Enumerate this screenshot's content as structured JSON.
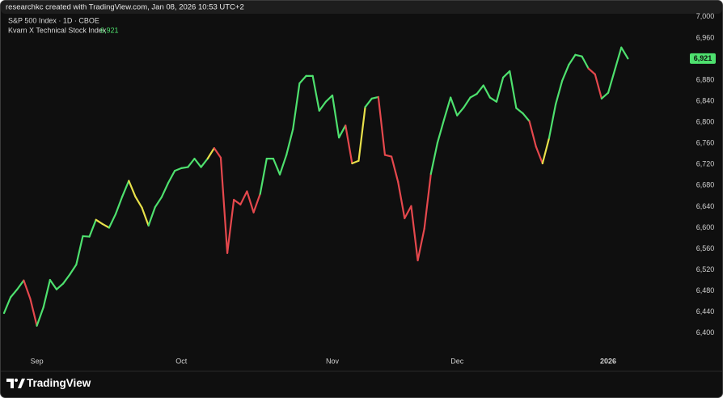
{
  "header": "researchkc created with TradingView.com, Jan 08, 2026 10:53 UTC+2",
  "brand": "TradingView",
  "chart_data": {
    "type": "line",
    "subtitle": "S&P 500 Index · 1D · CBOE",
    "categories": [
      null,
      null,
      null,
      null,
      null,
      "Sep",
      null,
      null,
      null,
      null,
      null,
      null,
      null,
      null,
      null,
      null,
      null,
      null,
      null,
      null,
      null,
      null,
      null,
      null,
      null,
      null,
      null,
      "Oct",
      null,
      null,
      null,
      null,
      null,
      null,
      null,
      null,
      null,
      null,
      null,
      null,
      null,
      null,
      null,
      null,
      null,
      null,
      null,
      null,
      null,
      null,
      "Nov",
      null,
      null,
      null,
      null,
      null,
      null,
      null,
      null,
      null,
      null,
      null,
      null,
      null,
      null,
      null,
      null,
      null,
      null,
      "Dec",
      null,
      null,
      null,
      null,
      null,
      null,
      null,
      null,
      null,
      null,
      null,
      null,
      null,
      null,
      null,
      null,
      null,
      null,
      null,
      null,
      null,
      null,
      "2026",
      null,
      null,
      null
    ],
    "series": [
      {
        "name": "Kvarn X Technical Stock Index",
        "values": [
          6438,
          6468,
          6483,
          6500,
          6465,
          6414,
          6449,
          6501,
          6483,
          6494,
          6511,
          6530,
          6584,
          6583,
          6615,
          6607,
          6600,
          6626,
          6659,
          6689,
          6659,
          6638,
          6604,
          6639,
          6658,
          6685,
          6708,
          6713,
          6715,
          6731,
          6715,
          6731,
          6751,
          6733,
          6552,
          6653,
          6644,
          6669,
          6629,
          6664,
          6731,
          6731,
          6701,
          6738,
          6787,
          6874,
          6888,
          6888,
          6822,
          6839,
          6851,
          6771,
          6794,
          6722,
          6727,
          6829,
          6845,
          6848,
          6738,
          6735,
          6687,
          6618,
          6641,
          6538,
          6598,
          6702,
          6761,
          6805,
          6847,
          6813,
          6828,
          6847,
          6854,
          6870,
          6847,
          6839,
          6885,
          6897,
          6827,
          6817,
          6802,
          6754,
          6722,
          6770,
          6834,
          6879,
          6909,
          6928,
          6925,
          6902,
          6891,
          6845,
          6856,
          6899,
          6942,
          6921
        ],
        "value_labels": [
          null,
          null,
          null,
          null,
          null,
          null,
          null,
          null,
          null,
          null,
          null,
          null,
          null,
          null,
          null,
          null,
          null,
          null,
          null,
          null,
          null,
          null,
          null,
          null,
          null,
          null,
          null,
          null,
          null,
          null,
          null,
          null,
          null,
          null,
          null,
          null,
          null,
          null,
          null,
          null,
          null,
          null,
          null,
          null,
          null,
          null,
          null,
          null,
          null,
          null,
          null,
          null,
          null,
          null,
          null,
          null,
          null,
          null,
          null,
          null,
          null,
          null,
          null,
          null,
          null,
          null,
          null,
          null,
          null,
          null,
          null,
          null,
          null,
          null,
          null,
          null,
          null,
          null,
          null,
          null,
          null,
          null,
          null,
          null,
          null,
          null,
          null,
          null,
          null,
          null,
          null,
          null,
          null,
          null,
          null,
          "6,921"
        ],
        "colors": [
          "#4ee06e",
          "#4ee06e",
          "#4ee06e",
          "#e5484d",
          "#e5484d",
          "#4ee06e",
          "#4ee06e",
          "#4ee06e",
          "#4ee06e",
          "#4ee06e",
          "#4ee06e",
          "#4ee06e",
          "#4ee06e",
          "#4ee06e",
          "#e8e04a",
          "#e8e04a",
          "#4ee06e",
          "#4ee06e",
          "#4ee06e",
          "#e8e04a",
          "#e8e04a",
          "#e8e04a",
          "#4ee06e",
          "#4ee06e",
          "#4ee06e",
          "#4ee06e",
          "#4ee06e",
          "#4ee06e",
          "#4ee06e",
          "#4ee06e",
          "#4ee06e",
          "#e8e04a",
          "#e5484d",
          "#e5484d",
          "#e5484d",
          "#e5484d",
          "#e5484d",
          "#e5484d",
          "#e5484d",
          "#4ee06e",
          "#4ee06e",
          "#4ee06e",
          "#4ee06e",
          "#4ee06e",
          "#4ee06e",
          "#4ee06e",
          "#4ee06e",
          "#4ee06e",
          "#4ee06e",
          "#4ee06e",
          "#4ee06e",
          "#4ee06e",
          "#e5484d",
          "#e8e04a",
          "#e8e04a",
          "#4ee06e",
          "#4ee06e",
          "#e5484d",
          "#e5484d",
          "#e5484d",
          "#e5484d",
          "#e5484d",
          "#e5484d",
          "#e5484d",
          "#e5484d",
          "#4ee06e",
          "#4ee06e",
          "#4ee06e",
          "#4ee06e",
          "#4ee06e",
          "#4ee06e",
          "#4ee06e",
          "#4ee06e",
          "#4ee06e",
          "#4ee06e",
          "#4ee06e",
          "#4ee06e",
          "#4ee06e",
          "#4ee06e",
          "#4ee06e",
          "#e5484d",
          "#e5484d",
          "#e8e04a",
          "#4ee06e",
          "#4ee06e",
          "#4ee06e",
          "#4ee06e",
          "#4ee06e",
          "#4ee06e",
          "#e5484d",
          "#e5484d",
          "#4ee06e",
          "#4ee06e",
          "#4ee06e",
          "#4ee06e",
          "#4ee06e"
        ]
      }
    ],
    "ylim": [
      6369,
      7009
    ],
    "yticks": [
      {
        "value": 6400,
        "label": "6,400"
      },
      {
        "value": 6440,
        "label": "6,440"
      },
      {
        "value": 6480,
        "label": "6,480"
      },
      {
        "value": 6520,
        "label": "6,520"
      },
      {
        "value": 6560,
        "label": "6,560"
      },
      {
        "value": 6600,
        "label": "6,600"
      },
      {
        "value": 6640,
        "label": "6,640"
      },
      {
        "value": 6680,
        "label": "6,680"
      },
      {
        "value": 6720,
        "label": "6,720"
      },
      {
        "value": 6760,
        "label": "6,760"
      },
      {
        "value": 6800,
        "label": "6,800"
      },
      {
        "value": 6840,
        "label": "6,840"
      },
      {
        "value": 6880,
        "label": "6,880"
      },
      {
        "value": 6920,
        "label": "6,920"
      },
      {
        "value": 6960,
        "label": "6,960"
      },
      {
        "value": 7000,
        "label": "7,000"
      }
    ],
    "grid": false
  }
}
